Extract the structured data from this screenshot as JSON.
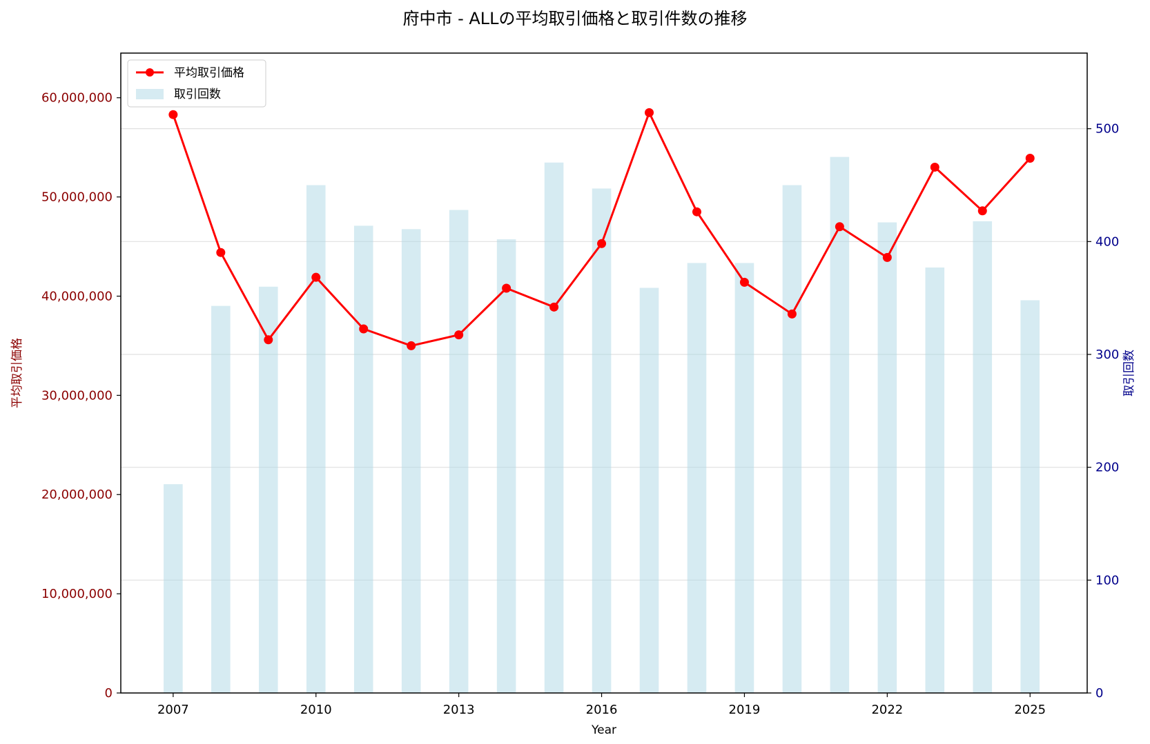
{
  "chart_data": {
    "type": "bar+line",
    "title": "府中市 - ALLの平均取引価格と取引件数の推移",
    "xlabel": "Year",
    "ylabel_left": "平均取引価格",
    "ylabel_right": "取引回数",
    "x": [
      2007,
      2008,
      2009,
      2010,
      2011,
      2012,
      2013,
      2014,
      2015,
      2016,
      2017,
      2018,
      2019,
      2020,
      2021,
      2022,
      2023,
      2024,
      2025
    ],
    "x_ticks": [
      "2007",
      "2010",
      "2013",
      "2016",
      "2019",
      "2022",
      "2025"
    ],
    "y_left_ticks": [
      "0",
      "10,000,000",
      "20,000,000",
      "30,000,000",
      "40,000,000",
      "50,000,000",
      "60,000,000"
    ],
    "y_right_ticks": [
      "0",
      "100",
      "200",
      "300",
      "400",
      "500"
    ],
    "ylim_left": [
      0,
      64500000
    ],
    "ylim_right": [
      0,
      567
    ],
    "xlim": [
      2005.9,
      2026.2
    ],
    "grid": "horizontal",
    "legend_position": "top-left",
    "series": [
      {
        "name": "平均取引価格",
        "kind": "line",
        "axis": "left",
        "color": "#ff0000",
        "values": [
          58300000,
          44400000,
          35600000,
          41900000,
          36700000,
          35000000,
          36100000,
          40800000,
          38900000,
          45300000,
          58500000,
          48500000,
          41400000,
          38200000,
          47000000,
          43900000,
          53000000,
          48600000,
          53900000
        ]
      },
      {
        "name": "取引回数",
        "kind": "bar",
        "axis": "right",
        "color": "#add8e6",
        "values": [
          185,
          343,
          360,
          450,
          414,
          411,
          428,
          402,
          470,
          447,
          359,
          381,
          381,
          450,
          475,
          417,
          377,
          418,
          348
        ]
      }
    ],
    "colors": {
      "left_axis": "#8b0000",
      "right_axis": "#00008b",
      "line": "#ff0000",
      "bar": "#add8e6"
    }
  }
}
